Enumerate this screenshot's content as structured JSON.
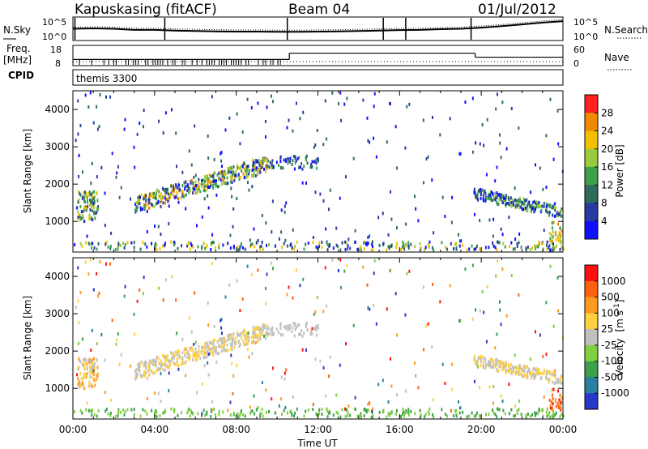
{
  "header": {
    "station": "Kapuskasing (fitACF)",
    "beam": "Beam 04",
    "date": "01/Jul/2012"
  },
  "left_labels": {
    "nsky": "N.Sky",
    "freq": "Freq.",
    "freq_unit": "[MHz]",
    "cpid": "CPID"
  },
  "right_labels": {
    "nsearch": "N.Search",
    "nave": "Nave"
  },
  "cpid_text": "themis 3300",
  "chart_data": [
    {
      "type": "line",
      "name": "noise",
      "y_ticks_left": [
        "10^5",
        "10^0"
      ],
      "y_ticks_right": [
        "10^5",
        "10^0"
      ],
      "x_hours": [
        0,
        1,
        2,
        3,
        4,
        5,
        6,
        7,
        8,
        9,
        10,
        11,
        12,
        13,
        14,
        15,
        16,
        17,
        18,
        19,
        20,
        21,
        22,
        23,
        24
      ],
      "level": [
        0.5,
        0.52,
        0.5,
        0.45,
        0.45,
        0.42,
        0.4,
        0.38,
        0.37,
        0.37,
        0.36,
        0.36,
        0.37,
        0.38,
        0.4,
        0.42,
        0.44,
        0.45,
        0.48,
        0.5,
        0.55,
        0.62,
        0.7,
        0.78,
        0.85
      ]
    },
    {
      "type": "line",
      "name": "frequency",
      "y_ticks_left": [
        "18",
        "8"
      ],
      "y_ticks_right": [
        "60",
        "0"
      ],
      "steps": [
        {
          "start": 0,
          "end": 10.6,
          "value": 11
        },
        {
          "start": 10.6,
          "end": 19.7,
          "value": 14.5
        },
        {
          "start": 19.7,
          "end": 24,
          "value": 12.3
        }
      ]
    },
    {
      "type": "heatmap",
      "title": "Power",
      "ylabel": "Slant Range [km]",
      "xlabel": "",
      "ylim": [
        180,
        4500
      ],
      "y_ticks": [
        "4000",
        "3000",
        "2000",
        "1000"
      ],
      "colorbar_label": "Power [dB]",
      "colorbar_ticks": [
        "28",
        "24",
        "20",
        "16",
        "12",
        "8",
        "4"
      ],
      "colorbar_colors": [
        "#1010ff",
        "#2a3aa0",
        "#2f6b5a",
        "#3aa04a",
        "#9acb3c",
        "#f2c000",
        "#f08a00",
        "#ff2020"
      ]
    },
    {
      "type": "heatmap",
      "title": "Velocity",
      "ylabel": "Slant Range [km]",
      "xlabel": "Time UT",
      "ylim": [
        180,
        4500
      ],
      "x_ticks": [
        "00:00",
        "04:00",
        "08:00",
        "12:00",
        "16:00",
        "20:00",
        "00:00"
      ],
      "y_ticks": [
        "4000",
        "3000",
        "2000",
        "1000"
      ],
      "colorbar_label": "Velocity",
      "colorbar_unit": "[m s",
      "colorbar_sup": "-1",
      "colorbar_close": "]",
      "colorbar_ticks": [
        "1000",
        "500",
        "100",
        "25",
        "-25",
        "-100",
        "-500",
        "-1000"
      ],
      "colorbar_colors": [
        "#2838c8",
        "#2a80a0",
        "#3aa04a",
        "#7ed040",
        "#c0c0c0",
        "#ffd040",
        "#ff9a20",
        "#ff6010",
        "#ff1010"
      ]
    }
  ]
}
